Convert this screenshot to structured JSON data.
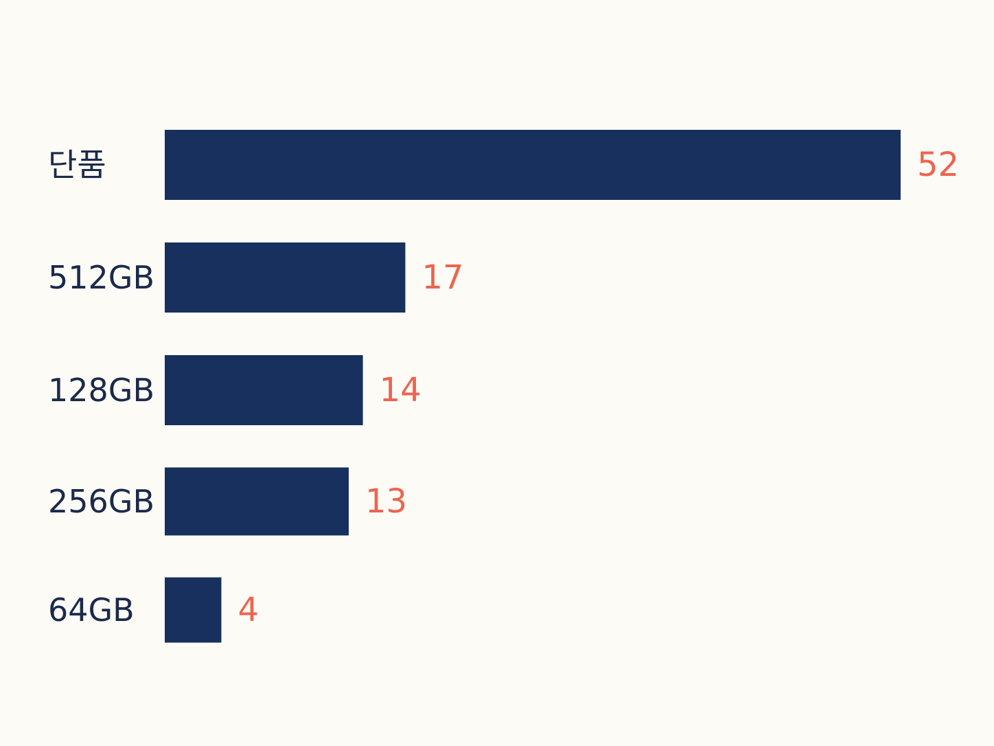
{
  "chart_data": {
    "type": "bar",
    "orientation": "horizontal",
    "title": "",
    "xlabel": "",
    "ylabel": "",
    "categories": [
      "단품",
      "512GB",
      "128GB",
      "256GB",
      "64GB"
    ],
    "values": [
      52,
      17,
      14,
      13,
      4
    ],
    "grid": false,
    "legend": "none",
    "colors": {
      "background": "#fdfbf6",
      "bar": "#17305d",
      "value_label": "#ec6450",
      "category_label": "#1b2a4a"
    }
  }
}
